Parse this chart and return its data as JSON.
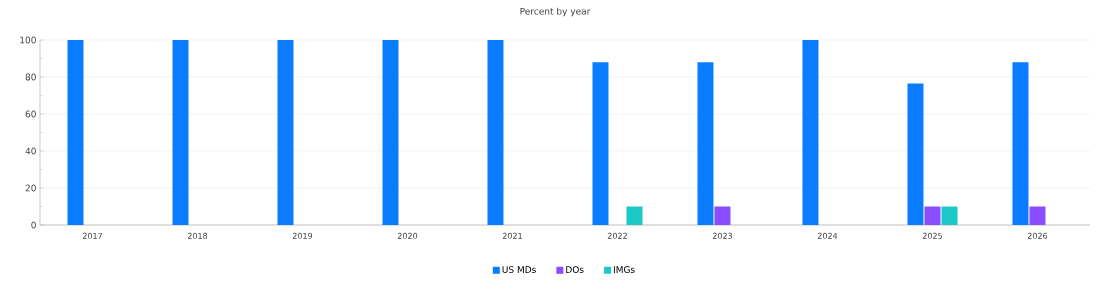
{
  "chart_data": {
    "type": "bar",
    "title": "Percent by year",
    "categories": [
      "2017",
      "2018",
      "2019",
      "2020",
      "2021",
      "2022",
      "2023",
      "2024",
      "2025",
      "2026"
    ],
    "series": [
      {
        "name": "US MDs",
        "color": "#0a7cff",
        "values": [
          100,
          100,
          100,
          100,
          100,
          88,
          88,
          100,
          76.5,
          88
        ]
      },
      {
        "name": "DOs",
        "color": "#8a4dff",
        "values": [
          0,
          0,
          0,
          0,
          0,
          0,
          10,
          0,
          10,
          10
        ]
      },
      {
        "name": "IMGs",
        "color": "#1cc8c8",
        "values": [
          0,
          0,
          0,
          0,
          0,
          10,
          0,
          0,
          10,
          0
        ]
      }
    ],
    "ylim": [
      0,
      100
    ],
    "yticks": [
      0,
      20,
      40,
      60,
      80,
      100
    ],
    "grid": "y",
    "legend": "bottom"
  }
}
